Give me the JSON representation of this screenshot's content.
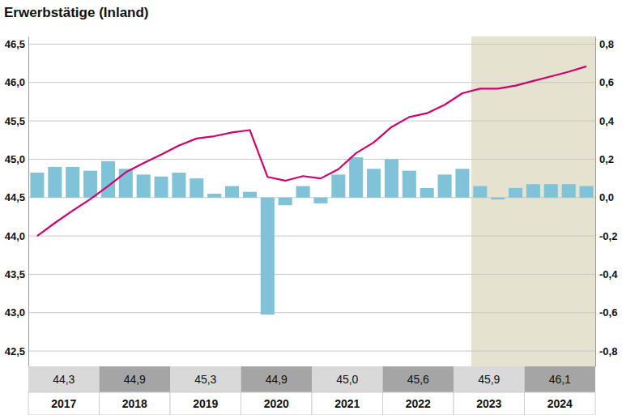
{
  "chart_data": {
    "type": "bar",
    "title": "Erwerbstätige (Inland)",
    "categories": [
      null,
      null,
      null,
      null,
      null,
      null,
      null,
      null,
      null,
      null,
      null,
      null,
      null,
      null,
      null,
      null,
      null,
      null,
      null,
      null,
      null,
      null,
      null,
      null,
      null,
      null,
      null,
      null,
      null,
      null,
      null,
      null
    ],
    "series": [
      {
        "type": "bar",
        "axis": "y2",
        "color": "#80c3d9",
        "values": [
          0.13,
          0.16,
          0.16,
          0.14,
          0.19,
          0.15,
          0.12,
          0.11,
          0.13,
          0.1,
          0.02,
          0.06,
          0.03,
          -0.61,
          -0.04,
          0.06,
          -0.03,
          0.12,
          0.21,
          0.15,
          0.2,
          0.14,
          0.05,
          0.12,
          0.15,
          0.06,
          -0.01,
          0.05,
          0.07,
          0.07,
          0.07,
          0.06
        ]
      },
      {
        "type": "line",
        "axis": "y",
        "color": "#d1006f",
        "values": [
          44.0,
          44.17,
          44.33,
          44.48,
          44.65,
          44.83,
          44.95,
          45.06,
          45.18,
          45.27,
          45.3,
          45.35,
          45.38,
          44.77,
          44.72,
          44.78,
          44.75,
          44.87,
          45.08,
          45.22,
          45.42,
          45.55,
          45.6,
          45.71,
          45.86,
          45.92,
          45.92,
          45.96,
          46.02,
          46.08,
          46.14,
          46.21
        ]
      }
    ],
    "ylim": [
      42.3,
      46.6
    ],
    "yticks": [
      {
        "value": 42.5,
        "label": "42,5"
      },
      {
        "value": 43.0,
        "label": "43,0"
      },
      {
        "value": 43.5,
        "label": "43,5"
      },
      {
        "value": 44.0,
        "label": "44,0"
      },
      {
        "value": 44.5,
        "label": "44,5"
      },
      {
        "value": 45.0,
        "label": "45,0"
      },
      {
        "value": 45.5,
        "label": "45,5"
      },
      {
        "value": 46.0,
        "label": "46,0"
      },
      {
        "value": 46.5,
        "label": "46,5"
      }
    ],
    "y2lim": [
      -0.88,
      0.84
    ],
    "y2ticks": [
      {
        "value": -0.8,
        "label": "-0,8"
      },
      {
        "value": -0.6,
        "label": "-0,6"
      },
      {
        "value": -0.4,
        "label": "-0,4"
      },
      {
        "value": -0.2,
        "label": "-0,2"
      },
      {
        "value": 0,
        "label": "0,0"
      },
      {
        "value": 0.2,
        "label": "0,2"
      },
      {
        "value": 0.4,
        "label": "0,4"
      },
      {
        "value": 0.6,
        "label": "0,6"
      },
      {
        "value": 0.8,
        "label": "0,8"
      }
    ],
    "grid": true,
    "shaded_from": 25,
    "years": [
      "2017",
      "2018",
      "2019",
      "2020",
      "2021",
      "2022",
      "2023",
      "2024"
    ],
    "annual_values": [
      {
        "value": 44.3,
        "label": "44,3"
      },
      {
        "value": 44.9,
        "label": "44,9"
      },
      {
        "value": 45.3,
        "label": "45,3"
      },
      {
        "value": 44.9,
        "label": "44,9"
      },
      {
        "value": 45.0,
        "label": "45,0"
      },
      {
        "value": 45.6,
        "label": "45,6"
      },
      {
        "value": 45.9,
        "label": "45,9"
      },
      {
        "value": 46.1,
        "label": "46,1"
      }
    ]
  }
}
